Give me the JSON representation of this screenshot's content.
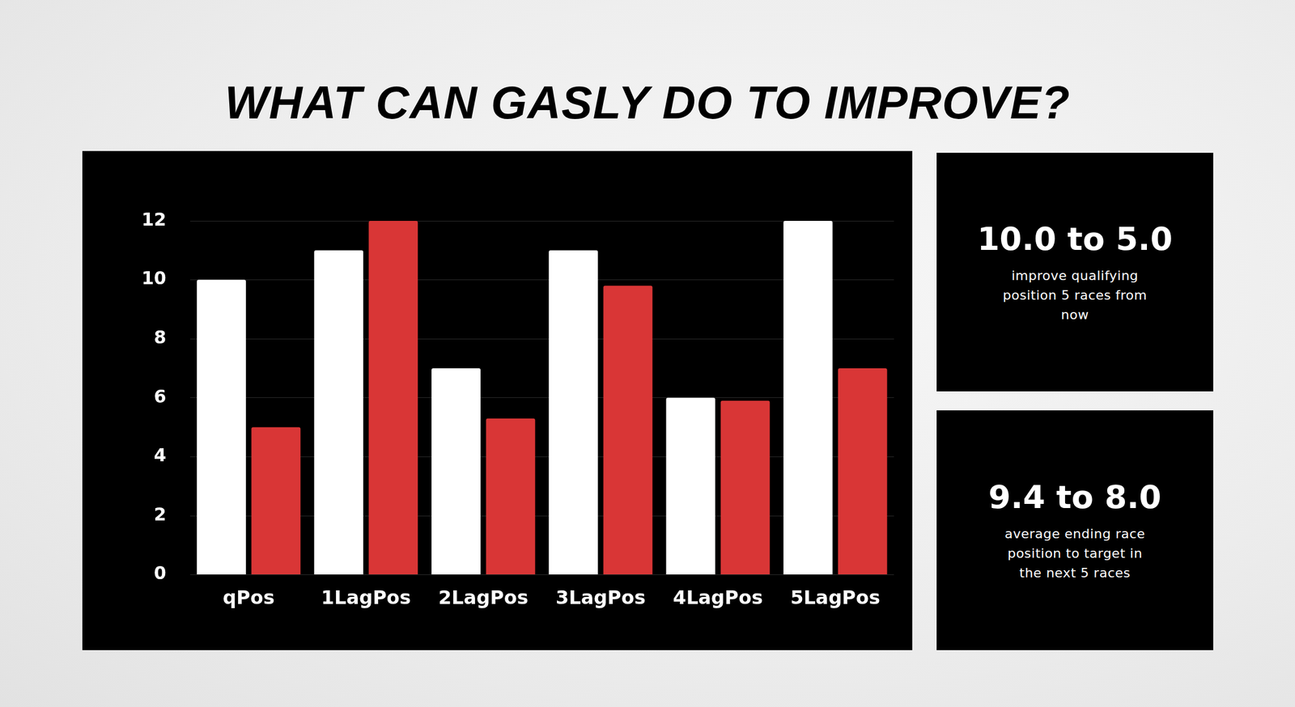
{
  "chart_data": {
    "type": "bar",
    "title": "WHAT CAN GASLY DO TO IMPROVE?",
    "categories": [
      "qPos",
      "1LagPos",
      "2LagPos",
      "3LagPos",
      "4LagPos",
      "5LagPos"
    ],
    "series": [
      {
        "color": "#ffffff",
        "values": [
          10,
          11,
          7,
          11,
          6,
          12
        ]
      },
      {
        "color": "#d93636",
        "values": [
          5,
          12,
          5.3,
          9.8,
          5.9,
          7
        ]
      }
    ],
    "ylim": [
      0,
      12
    ],
    "yticks": [
      0,
      2,
      4,
      6,
      8,
      10,
      12
    ],
    "grid": true
  },
  "panels": [
    {
      "headline": "10.0 to 5.0",
      "text": "improve qualifying position 5 races from now"
    },
    {
      "headline": "9.4 to 8.0",
      "text": "average ending race position to target in the next 5 races"
    }
  ]
}
